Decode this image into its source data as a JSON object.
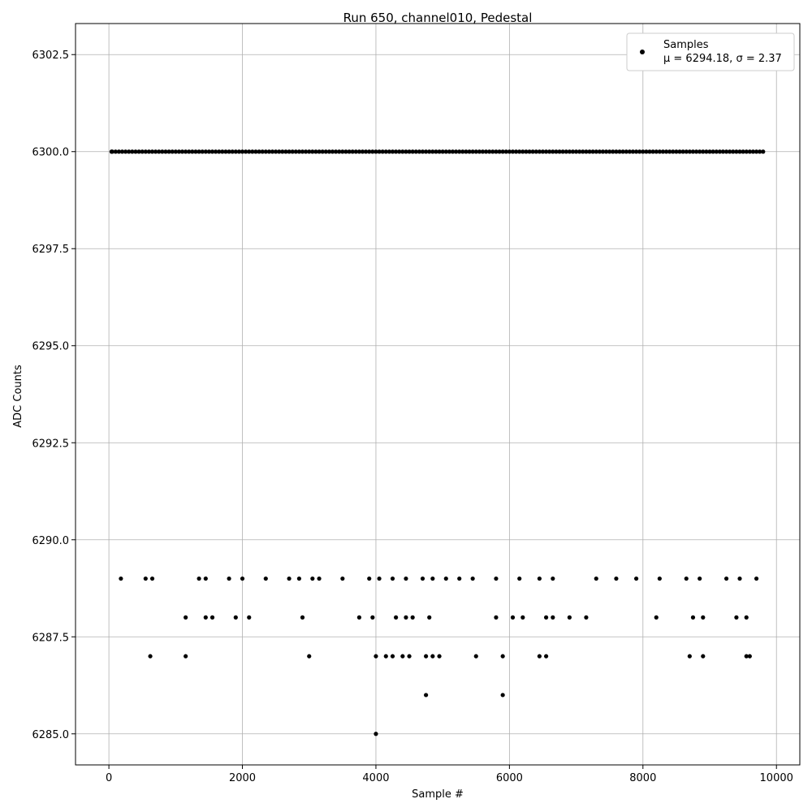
{
  "chart_data": {
    "type": "scatter",
    "title": "Run 650, channel010, Pedestal",
    "xlabel": "Sample #",
    "ylabel": "ADC Counts",
    "xlim": [
      -500,
      10350
    ],
    "ylim": [
      6284.2,
      6303.3
    ],
    "xticks": [
      0,
      2000,
      4000,
      6000,
      8000,
      10000
    ],
    "xtick_labels": [
      "0",
      "2000",
      "4000",
      "6000",
      "8000",
      "10000"
    ],
    "yticks": [
      6285.0,
      6287.5,
      6290.0,
      6292.5,
      6295.0,
      6297.5,
      6300.0,
      6302.5
    ],
    "ytick_labels": [
      "6285.0",
      "6287.5",
      "6290.0",
      "6292.5",
      "6295.0",
      "6297.5",
      "6300.0",
      "6302.5"
    ],
    "grid": true,
    "legend_position": "top-right",
    "marker_color": "#000000",
    "series": [
      {
        "name": "Samples",
        "legend_label": "Samples",
        "stats_label": "μ = 6294.18, σ = 2.37",
        "approx_count": 9850,
        "points": [
          [
            4000,
            6285
          ],
          [
            4750,
            6286
          ],
          [
            5900,
            6286
          ],
          [
            620,
            6287
          ],
          [
            1150,
            6287
          ],
          [
            3000,
            6287
          ],
          [
            4000,
            6287
          ],
          [
            4150,
            6287
          ],
          [
            4250,
            6287
          ],
          [
            4400,
            6287
          ],
          [
            4500,
            6287
          ],
          [
            4750,
            6287
          ],
          [
            4850,
            6287
          ],
          [
            4950,
            6287
          ],
          [
            5500,
            6287
          ],
          [
            5900,
            6287
          ],
          [
            6450,
            6287
          ],
          [
            6550,
            6287
          ],
          [
            8700,
            6287
          ],
          [
            8900,
            6287
          ],
          [
            9550,
            6287
          ],
          [
            9600,
            6287
          ],
          [
            1150,
            6288
          ],
          [
            1450,
            6288
          ],
          [
            1550,
            6288
          ],
          [
            1900,
            6288
          ],
          [
            2100,
            6288
          ],
          [
            2900,
            6288
          ],
          [
            3750,
            6288
          ],
          [
            3950,
            6288
          ],
          [
            4300,
            6288
          ],
          [
            4450,
            6288
          ],
          [
            4550,
            6288
          ],
          [
            4800,
            6288
          ],
          [
            5800,
            6288
          ],
          [
            6050,
            6288
          ],
          [
            6200,
            6288
          ],
          [
            6550,
            6288
          ],
          [
            6650,
            6288
          ],
          [
            6900,
            6288
          ],
          [
            7150,
            6288
          ],
          [
            8200,
            6288
          ],
          [
            8750,
            6288
          ],
          [
            8900,
            6288
          ],
          [
            9400,
            6288
          ],
          [
            9550,
            6288
          ],
          [
            180,
            6289
          ],
          [
            550,
            6289
          ],
          [
            650,
            6289
          ],
          [
            1350,
            6289
          ],
          [
            1450,
            6289
          ],
          [
            1800,
            6289
          ],
          [
            2000,
            6289
          ],
          [
            2350,
            6289
          ],
          [
            2700,
            6289
          ],
          [
            2850,
            6289
          ],
          [
            3050,
            6289
          ],
          [
            3150,
            6289
          ],
          [
            3500,
            6289
          ],
          [
            3900,
            6289
          ],
          [
            4050,
            6289
          ],
          [
            4250,
            6289
          ],
          [
            4450,
            6289
          ],
          [
            4700,
            6289
          ],
          [
            4850,
            6289
          ],
          [
            5050,
            6289
          ],
          [
            5250,
            6289
          ],
          [
            5450,
            6289
          ],
          [
            5800,
            6289
          ],
          [
            6150,
            6289
          ],
          [
            6450,
            6289
          ],
          [
            6650,
            6289
          ],
          [
            7300,
            6289
          ],
          [
            7600,
            6289
          ],
          [
            7900,
            6289
          ],
          [
            8250,
            6289
          ],
          [
            8650,
            6289
          ],
          [
            8850,
            6289
          ],
          [
            9250,
            6289
          ],
          [
            9450,
            6289
          ],
          [
            9700,
            6289
          ],
          [
            40,
            6300
          ],
          [
            50,
            6300
          ],
          [
            100,
            6300
          ],
          [
            150,
            6300
          ],
          [
            200,
            6300
          ],
          [
            250,
            6300
          ],
          [
            300,
            6300
          ],
          [
            350,
            6300
          ],
          [
            400,
            6300
          ],
          [
            450,
            6300
          ],
          [
            500,
            6300
          ],
          [
            550,
            6300
          ],
          [
            600,
            6300
          ],
          [
            650,
            6300
          ],
          [
            700,
            6300
          ],
          [
            750,
            6300
          ],
          [
            800,
            6300
          ],
          [
            850,
            6300
          ],
          [
            900,
            6300
          ],
          [
            950,
            6300
          ],
          [
            1000,
            6300
          ],
          [
            1050,
            6300
          ],
          [
            1100,
            6300
          ],
          [
            1150,
            6300
          ],
          [
            1200,
            6300
          ],
          [
            1250,
            6300
          ],
          [
            1300,
            6300
          ],
          [
            1350,
            6300
          ],
          [
            1400,
            6300
          ],
          [
            1450,
            6300
          ],
          [
            1500,
            6300
          ],
          [
            1550,
            6300
          ],
          [
            1600,
            6300
          ],
          [
            1650,
            6300
          ],
          [
            1700,
            6300
          ],
          [
            1750,
            6300
          ],
          [
            1800,
            6300
          ],
          [
            1850,
            6300
          ],
          [
            1900,
            6300
          ],
          [
            1950,
            6300
          ],
          [
            2000,
            6300
          ],
          [
            2050,
            6300
          ],
          [
            2100,
            6300
          ],
          [
            2150,
            6300
          ],
          [
            2200,
            6300
          ],
          [
            2250,
            6300
          ],
          [
            2300,
            6300
          ],
          [
            2350,
            6300
          ],
          [
            2400,
            6300
          ],
          [
            2450,
            6300
          ],
          [
            2500,
            6300
          ],
          [
            2550,
            6300
          ],
          [
            2600,
            6300
          ],
          [
            2650,
            6300
          ],
          [
            2700,
            6300
          ],
          [
            2750,
            6300
          ],
          [
            2800,
            6300
          ],
          [
            2850,
            6300
          ],
          [
            2900,
            6300
          ],
          [
            2950,
            6300
          ],
          [
            3000,
            6300
          ],
          [
            3050,
            6300
          ],
          [
            3100,
            6300
          ],
          [
            3150,
            6300
          ],
          [
            3200,
            6300
          ],
          [
            3250,
            6300
          ],
          [
            3300,
            6300
          ],
          [
            3350,
            6300
          ],
          [
            3400,
            6300
          ],
          [
            3450,
            6300
          ],
          [
            3500,
            6300
          ],
          [
            3550,
            6300
          ],
          [
            3600,
            6300
          ],
          [
            3650,
            6300
          ],
          [
            3700,
            6300
          ],
          [
            3750,
            6300
          ],
          [
            3800,
            6300
          ],
          [
            3850,
            6300
          ],
          [
            3900,
            6300
          ],
          [
            3950,
            6300
          ],
          [
            4000,
            6300
          ],
          [
            4050,
            6300
          ],
          [
            4100,
            6300
          ],
          [
            4150,
            6300
          ],
          [
            4200,
            6300
          ],
          [
            4250,
            6300
          ],
          [
            4300,
            6300
          ],
          [
            4350,
            6300
          ],
          [
            4400,
            6300
          ],
          [
            4450,
            6300
          ],
          [
            4500,
            6300
          ],
          [
            4550,
            6300
          ],
          [
            4600,
            6300
          ],
          [
            4650,
            6300
          ],
          [
            4700,
            6300
          ],
          [
            4750,
            6300
          ],
          [
            4800,
            6300
          ],
          [
            4850,
            6300
          ],
          [
            4900,
            6300
          ],
          [
            4950,
            6300
          ],
          [
            5000,
            6300
          ],
          [
            5050,
            6300
          ],
          [
            5100,
            6300
          ],
          [
            5150,
            6300
          ],
          [
            5200,
            6300
          ],
          [
            5250,
            6300
          ],
          [
            5300,
            6300
          ],
          [
            5350,
            6300
          ],
          [
            5400,
            6300
          ],
          [
            5450,
            6300
          ],
          [
            5500,
            6300
          ],
          [
            5550,
            6300
          ],
          [
            5600,
            6300
          ],
          [
            5650,
            6300
          ],
          [
            5700,
            6300
          ],
          [
            5750,
            6300
          ],
          [
            5800,
            6300
          ],
          [
            5850,
            6300
          ],
          [
            5900,
            6300
          ],
          [
            5950,
            6300
          ],
          [
            6000,
            6300
          ],
          [
            6050,
            6300
          ],
          [
            6100,
            6300
          ],
          [
            6150,
            6300
          ],
          [
            6200,
            6300
          ],
          [
            6250,
            6300
          ],
          [
            6300,
            6300
          ],
          [
            6350,
            6300
          ],
          [
            6400,
            6300
          ],
          [
            6450,
            6300
          ],
          [
            6500,
            6300
          ],
          [
            6550,
            6300
          ],
          [
            6600,
            6300
          ],
          [
            6650,
            6300
          ],
          [
            6700,
            6300
          ],
          [
            6750,
            6300
          ],
          [
            6800,
            6300
          ],
          [
            6850,
            6300
          ],
          [
            6900,
            6300
          ],
          [
            6950,
            6300
          ],
          [
            7000,
            6300
          ],
          [
            7050,
            6300
          ],
          [
            7100,
            6300
          ],
          [
            7150,
            6300
          ],
          [
            7200,
            6300
          ],
          [
            7250,
            6300
          ],
          [
            7300,
            6300
          ],
          [
            7350,
            6300
          ],
          [
            7400,
            6300
          ],
          [
            7450,
            6300
          ],
          [
            7500,
            6300
          ],
          [
            7550,
            6300
          ],
          [
            7600,
            6300
          ],
          [
            7650,
            6300
          ],
          [
            7700,
            6300
          ],
          [
            7750,
            6300
          ],
          [
            7800,
            6300
          ],
          [
            7850,
            6300
          ],
          [
            7900,
            6300
          ],
          [
            7950,
            6300
          ],
          [
            8000,
            6300
          ],
          [
            8050,
            6300
          ],
          [
            8100,
            6300
          ],
          [
            8150,
            6300
          ],
          [
            8200,
            6300
          ],
          [
            8250,
            6300
          ],
          [
            8300,
            6300
          ],
          [
            8350,
            6300
          ],
          [
            8400,
            6300
          ],
          [
            8450,
            6300
          ],
          [
            8500,
            6300
          ],
          [
            8550,
            6300
          ],
          [
            8600,
            6300
          ],
          [
            8650,
            6300
          ],
          [
            8700,
            6300
          ],
          [
            8750,
            6300
          ],
          [
            8800,
            6300
          ],
          [
            8850,
            6300
          ],
          [
            8900,
            6300
          ],
          [
            8950,
            6300
          ],
          [
            9000,
            6300
          ],
          [
            9050,
            6300
          ],
          [
            9100,
            6300
          ],
          [
            9150,
            6300
          ],
          [
            9200,
            6300
          ],
          [
            9250,
            6300
          ],
          [
            9300,
            6300
          ],
          [
            9350,
            6300
          ],
          [
            9400,
            6300
          ],
          [
            9450,
            6300
          ],
          [
            9500,
            6300
          ],
          [
            9550,
            6300
          ],
          [
            9600,
            6300
          ],
          [
            9650,
            6300
          ],
          [
            9700,
            6300
          ],
          [
            9750,
            6300
          ],
          [
            9800,
            6300
          ]
        ]
      }
    ]
  }
}
